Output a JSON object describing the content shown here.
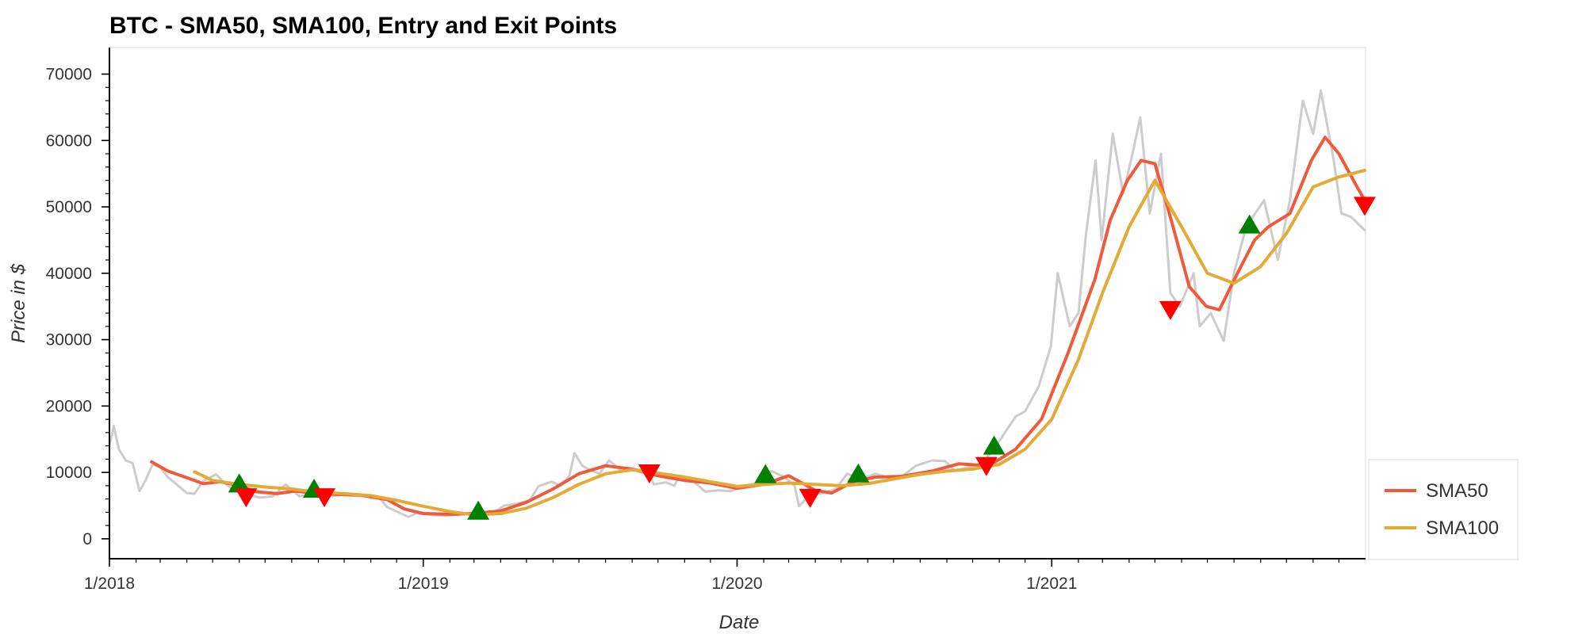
{
  "chart_data": {
    "type": "line",
    "title": "BTC - SMA50, SMA100, Entry and Exit Points",
    "xlabel": "Date",
    "ylabel": "Price in $",
    "x_range": [
      "2018-01-01",
      "2022-01-01"
    ],
    "x_ticks": [
      "1/2018",
      "1/2019",
      "1/2020",
      "1/2021"
    ],
    "ylim": [
      -3000,
      74000
    ],
    "y_ticks": [
      0,
      10000,
      20000,
      30000,
      40000,
      50000,
      60000,
      70000
    ],
    "grid": false,
    "legend_position": "bottom-right, outside plot",
    "series": [
      {
        "name": "",
        "color": "#cccccc",
        "points": [
          [
            "2018-01-01",
            14000
          ],
          [
            "2018-01-06",
            17000
          ],
          [
            "2018-01-12",
            13500
          ],
          [
            "2018-01-20",
            11800
          ],
          [
            "2018-01-28",
            11400
          ],
          [
            "2018-02-05",
            7200
          ],
          [
            "2018-02-12",
            8800
          ],
          [
            "2018-02-20",
            11200
          ],
          [
            "2018-03-01",
            10800
          ],
          [
            "2018-03-10",
            9300
          ],
          [
            "2018-03-20",
            8200
          ],
          [
            "2018-04-01",
            6900
          ],
          [
            "2018-04-10",
            6800
          ],
          [
            "2018-04-20",
            8700
          ],
          [
            "2018-05-05",
            9700
          ],
          [
            "2018-05-15",
            8400
          ],
          [
            "2018-05-25",
            7400
          ],
          [
            "2018-06-10",
            6700
          ],
          [
            "2018-06-25",
            6200
          ],
          [
            "2018-07-10",
            6400
          ],
          [
            "2018-07-25",
            8200
          ],
          [
            "2018-08-10",
            6400
          ],
          [
            "2018-08-25",
            6800
          ],
          [
            "2018-09-10",
            6300
          ],
          [
            "2018-09-25",
            6600
          ],
          [
            "2018-10-10",
            6500
          ],
          [
            "2018-10-25",
            6400
          ],
          [
            "2018-11-10",
            6300
          ],
          [
            "2018-11-20",
            4800
          ],
          [
            "2018-12-01",
            4100
          ],
          [
            "2018-12-15",
            3300
          ],
          [
            "2018-12-25",
            3900
          ],
          [
            "2019-01-10",
            3600
          ],
          [
            "2019-01-25",
            3500
          ],
          [
            "2019-02-10",
            3600
          ],
          [
            "2019-02-25",
            3900
          ],
          [
            "2019-03-10",
            3900
          ],
          [
            "2019-03-25",
            4000
          ],
          [
            "2019-04-05",
            5000
          ],
          [
            "2019-04-20",
            5300
          ],
          [
            "2019-05-05",
            5800
          ],
          [
            "2019-05-15",
            7900
          ],
          [
            "2019-05-30",
            8600
          ],
          [
            "2019-06-10",
            8000
          ],
          [
            "2019-06-20",
            9500
          ],
          [
            "2019-06-26",
            12900
          ],
          [
            "2019-07-05",
            11000
          ],
          [
            "2019-07-15",
            10300
          ],
          [
            "2019-07-25",
            9800
          ],
          [
            "2019-08-05",
            11800
          ],
          [
            "2019-08-20",
            10200
          ],
          [
            "2019-09-05",
            10500
          ],
          [
            "2019-09-20",
            10100
          ],
          [
            "2019-09-26",
            8200
          ],
          [
            "2019-10-10",
            8500
          ],
          [
            "2019-10-20",
            8000
          ],
          [
            "2019-10-26",
            9500
          ],
          [
            "2019-11-10",
            8800
          ],
          [
            "2019-11-25",
            7100
          ],
          [
            "2019-12-10",
            7300
          ],
          [
            "2019-12-25",
            7200
          ],
          [
            "2020-01-10",
            8000
          ],
          [
            "2020-01-25",
            8400
          ],
          [
            "2020-02-10",
            10200
          ],
          [
            "2020-02-25",
            9300
          ],
          [
            "2020-03-08",
            8000
          ],
          [
            "2020-03-13",
            4900
          ],
          [
            "2020-03-25",
            6500
          ],
          [
            "2020-04-10",
            6900
          ],
          [
            "2020-04-25",
            7500
          ],
          [
            "2020-05-08",
            9800
          ],
          [
            "2020-05-25",
            9000
          ],
          [
            "2020-06-10",
            9800
          ],
          [
            "2020-06-25",
            9200
          ],
          [
            "2020-07-10",
            9300
          ],
          [
            "2020-07-27",
            11000
          ],
          [
            "2020-08-15",
            11800
          ],
          [
            "2020-08-30",
            11700
          ],
          [
            "2020-09-10",
            10300
          ],
          [
            "2020-09-25",
            10700
          ],
          [
            "2020-10-10",
            11300
          ],
          [
            "2020-10-22",
            12900
          ],
          [
            "2020-11-05",
            15500
          ],
          [
            "2020-11-20",
            18400
          ],
          [
            "2020-12-01",
            19200
          ],
          [
            "2020-12-17",
            23000
          ],
          [
            "2020-12-31",
            29000
          ],
          [
            "2021-01-08",
            40000
          ],
          [
            "2021-01-15",
            36000
          ],
          [
            "2021-01-22",
            32000
          ],
          [
            "2021-02-01",
            34000
          ],
          [
            "2021-02-10",
            46000
          ],
          [
            "2021-02-21",
            57000
          ],
          [
            "2021-02-28",
            45000
          ],
          [
            "2021-03-13",
            61000
          ],
          [
            "2021-03-25",
            52000
          ],
          [
            "2021-04-05",
            58000
          ],
          [
            "2021-04-14",
            63500
          ],
          [
            "2021-04-25",
            49000
          ],
          [
            "2021-05-08",
            58000
          ],
          [
            "2021-05-19",
            37000
          ],
          [
            "2021-05-30",
            35000
          ],
          [
            "2021-06-15",
            40000
          ],
          [
            "2021-06-22",
            32000
          ],
          [
            "2021-07-05",
            34000
          ],
          [
            "2021-07-20",
            29800
          ],
          [
            "2021-08-01",
            40000
          ],
          [
            "2021-08-15",
            47000
          ],
          [
            "2021-09-05",
            51000
          ],
          [
            "2021-09-21",
            42000
          ],
          [
            "2021-10-05",
            51000
          ],
          [
            "2021-10-20",
            66000
          ],
          [
            "2021-11-01",
            61000
          ],
          [
            "2021-11-10",
            67500
          ],
          [
            "2021-11-25",
            57000
          ],
          [
            "2021-12-04",
            49000
          ],
          [
            "2021-12-15",
            48500
          ],
          [
            "2021-12-31",
            46500
          ]
        ]
      },
      {
        "name": "SMA50",
        "color": "#f05a3c",
        "points": [
          [
            "2018-02-19",
            11600
          ],
          [
            "2018-03-10",
            10200
          ],
          [
            "2018-04-01",
            9200
          ],
          [
            "2018-04-20",
            8300
          ],
          [
            "2018-05-10",
            8600
          ],
          [
            "2018-06-01",
            8000
          ],
          [
            "2018-06-20",
            7100
          ],
          [
            "2018-07-15",
            6800
          ],
          [
            "2018-08-05",
            7200
          ],
          [
            "2018-08-25",
            6900
          ],
          [
            "2018-09-20",
            6700
          ],
          [
            "2018-10-20",
            6600
          ],
          [
            "2018-11-20",
            5900
          ],
          [
            "2018-12-10",
            4500
          ],
          [
            "2019-01-01",
            3800
          ],
          [
            "2019-02-01",
            3700
          ],
          [
            "2019-03-01",
            3800
          ],
          [
            "2019-04-01",
            4200
          ],
          [
            "2019-05-01",
            5500
          ],
          [
            "2019-06-01",
            7500
          ],
          [
            "2019-07-01",
            9800
          ],
          [
            "2019-08-01",
            11000
          ],
          [
            "2019-09-01",
            10500
          ],
          [
            "2019-10-01",
            9500
          ],
          [
            "2019-11-01",
            8800
          ],
          [
            "2019-12-01",
            8400
          ],
          [
            "2020-01-01",
            7600
          ],
          [
            "2020-02-01",
            8200
          ],
          [
            "2020-03-01",
            9500
          ],
          [
            "2020-04-01",
            7300
          ],
          [
            "2020-04-20",
            6900
          ],
          [
            "2020-05-15",
            8600
          ],
          [
            "2020-06-10",
            9300
          ],
          [
            "2020-07-10",
            9400
          ],
          [
            "2020-08-15",
            10200
          ],
          [
            "2020-09-15",
            11300
          ],
          [
            "2020-10-20",
            11000
          ],
          [
            "2020-11-20",
            13500
          ],
          [
            "2020-12-20",
            18000
          ],
          [
            "2021-01-20",
            28000
          ],
          [
            "2021-02-20",
            39000
          ],
          [
            "2021-03-10",
            48000
          ],
          [
            "2021-03-30",
            54000
          ],
          [
            "2021-04-15",
            57000
          ],
          [
            "2021-05-01",
            56500
          ],
          [
            "2021-05-20",
            48000
          ],
          [
            "2021-06-10",
            38000
          ],
          [
            "2021-06-30",
            35000
          ],
          [
            "2021-07-15",
            34500
          ],
          [
            "2021-08-05",
            40000
          ],
          [
            "2021-08-25",
            45000
          ],
          [
            "2021-09-10",
            47000
          ],
          [
            "2021-10-05",
            49000
          ],
          [
            "2021-10-30",
            57000
          ],
          [
            "2021-11-15",
            60500
          ],
          [
            "2021-12-01",
            58000
          ],
          [
            "2021-12-20",
            53500
          ],
          [
            "2021-12-31",
            51000
          ]
        ]
      },
      {
        "name": "SMA100",
        "color": "#e3aa36",
        "points": [
          [
            "2018-04-10",
            10100
          ],
          [
            "2018-05-01",
            8800
          ],
          [
            "2018-06-01",
            8200
          ],
          [
            "2018-07-01",
            7800
          ],
          [
            "2018-08-01",
            7500
          ],
          [
            "2018-09-01",
            7000
          ],
          [
            "2018-10-01",
            6800
          ],
          [
            "2018-11-01",
            6500
          ],
          [
            "2018-12-01",
            5800
          ],
          [
            "2019-01-01",
            4900
          ],
          [
            "2019-02-01",
            4100
          ],
          [
            "2019-03-01",
            3600
          ],
          [
            "2019-04-01",
            3800
          ],
          [
            "2019-05-01",
            4600
          ],
          [
            "2019-06-01",
            6200
          ],
          [
            "2019-07-01",
            8200
          ],
          [
            "2019-08-01",
            9800
          ],
          [
            "2019-09-01",
            10400
          ],
          [
            "2019-10-01",
            9900
          ],
          [
            "2019-11-01",
            9300
          ],
          [
            "2019-12-01",
            8600
          ],
          [
            "2020-01-01",
            7900
          ],
          [
            "2020-02-01",
            8200
          ],
          [
            "2020-03-01",
            8400
          ],
          [
            "2020-04-01",
            8200
          ],
          [
            "2020-05-01",
            8000
          ],
          [
            "2020-06-01",
            8300
          ],
          [
            "2020-07-01",
            9000
          ],
          [
            "2020-08-01",
            9700
          ],
          [
            "2020-09-01",
            10200
          ],
          [
            "2020-10-01",
            10500
          ],
          [
            "2020-11-01",
            11200
          ],
          [
            "2020-12-01",
            13500
          ],
          [
            "2021-01-01",
            18000
          ],
          [
            "2021-02-01",
            27000
          ],
          [
            "2021-03-01",
            37000
          ],
          [
            "2021-04-01",
            47000
          ],
          [
            "2021-05-01",
            54000
          ],
          [
            "2021-06-01",
            47000
          ],
          [
            "2021-07-01",
            40000
          ],
          [
            "2021-08-01",
            38500
          ],
          [
            "2021-09-01",
            41000
          ],
          [
            "2021-10-01",
            46000
          ],
          [
            "2021-11-01",
            53000
          ],
          [
            "2021-12-01",
            54500
          ],
          [
            "2021-12-31",
            55500
          ]
        ]
      }
    ],
    "entry_points": [
      {
        "date": "2018-06-01",
        "price": 8300
      },
      {
        "date": "2018-08-27",
        "price": 7500
      },
      {
        "date": "2019-03-06",
        "price": 4200
      },
      {
        "date": "2020-02-03",
        "price": 9700
      },
      {
        "date": "2020-05-21",
        "price": 9800
      },
      {
        "date": "2020-10-26",
        "price": 14000
      },
      {
        "date": "2021-08-19",
        "price": 47300
      }
    ],
    "exit_points": [
      {
        "date": "2018-06-09",
        "price": 6300
      },
      {
        "date": "2018-09-08",
        "price": 6300
      },
      {
        "date": "2019-09-21",
        "price": 9900
      },
      {
        "date": "2020-03-26",
        "price": 6200
      },
      {
        "date": "2020-10-17",
        "price": 11000
      },
      {
        "date": "2021-05-19",
        "price": 34500
      },
      {
        "date": "2021-12-31",
        "price": 50200
      }
    ],
    "entry_color": "#008000",
    "exit_color": "#ff0000",
    "legend": [
      "SMA50",
      "SMA100"
    ]
  }
}
